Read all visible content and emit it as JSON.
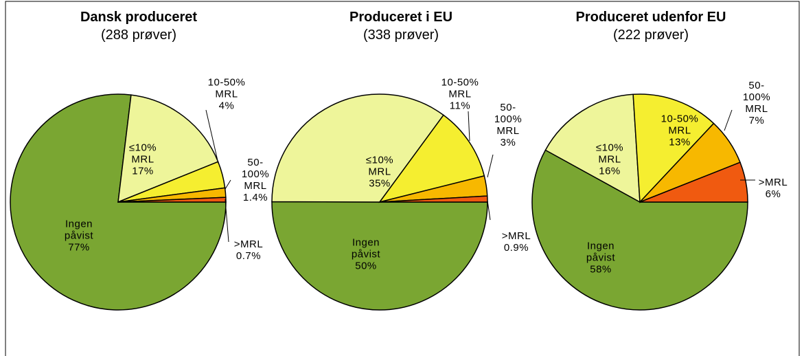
{
  "chart_data": [
    {
      "type": "pie",
      "title": "Dansk produceret",
      "subtitle": "(288 prøver)",
      "categories": [
        "Ingen\npåvist",
        "≤10%\nMRL",
        "10-50%\nMRL",
        "50-\n100%\nMRL",
        ">MRL"
      ],
      "values": [
        77,
        17,
        4,
        1.4,
        0.7
      ],
      "value_labels": [
        "77%",
        "17%",
        "4%",
        "1.4%",
        "0.7%"
      ],
      "colors": [
        "#7aa632",
        "#eef59a",
        "#f5ee30",
        "#f7b800",
        "#f05a10"
      ]
    },
    {
      "type": "pie",
      "title": "Produceret i EU",
      "subtitle": "(338 prøver)",
      "categories": [
        "Ingen\npåvist",
        "≤10%\nMRL",
        "10-50%\nMRL",
        "50-\n100%\nMRL",
        ">MRL"
      ],
      "values": [
        50,
        35,
        11,
        3,
        0.9
      ],
      "value_labels": [
        "50%",
        "35%",
        "11%",
        "3%",
        "0.9%"
      ],
      "colors": [
        "#7aa632",
        "#eef59a",
        "#f5ee30",
        "#f7b800",
        "#f05a10"
      ]
    },
    {
      "type": "pie",
      "title": "Produceret udenfor EU",
      "subtitle": "(222 prøver)",
      "categories": [
        "Ingen\npåvist",
        "≤10%\nMRL",
        "10-50%\nMRL",
        "50-\n100%\nMRL",
        ">MRL"
      ],
      "values": [
        58,
        16,
        13,
        7,
        6
      ],
      "value_labels": [
        "58%",
        "16%",
        "13%",
        "7%",
        "6%"
      ],
      "colors": [
        "#7aa632",
        "#eef59a",
        "#f5ee30",
        "#f7b800",
        "#f05a10"
      ]
    }
  ]
}
